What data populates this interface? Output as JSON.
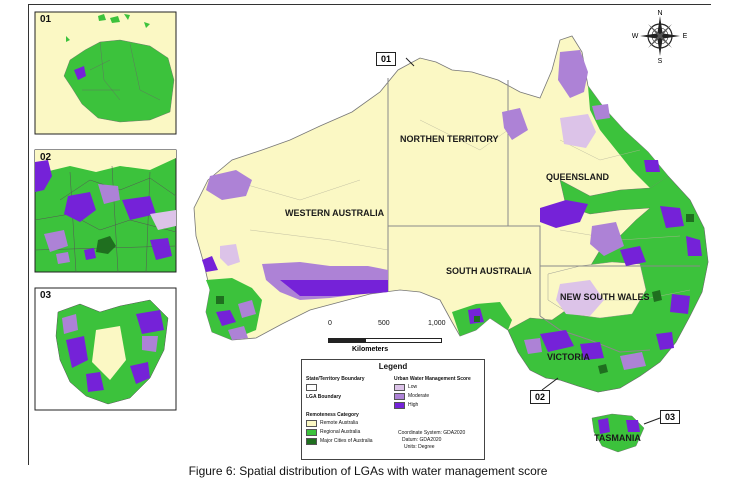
{
  "caption": "Figure 6: Spatial distribution of LGAs with water management score",
  "insets": [
    {
      "label": "01"
    },
    {
      "label": "02"
    },
    {
      "label": "03"
    }
  ],
  "callouts": [
    {
      "label": "01"
    },
    {
      "label": "02"
    },
    {
      "label": "03"
    }
  ],
  "states": {
    "wa": "WESTERN AUSTRALIA",
    "nt": "NORTHEN TERRITORY",
    "qld": "QUEENSLAND",
    "sa": "SOUTH AUSTRALIA",
    "nsw": "NEW SOUTH WALES",
    "vic": "VICTORIA",
    "tas": "TASMANIA"
  },
  "compass": {
    "n": "N",
    "s": "S",
    "e": "E",
    "w": "W"
  },
  "scale": {
    "ticks": [
      "0",
      "500",
      "1,000"
    ],
    "unit": "Kilometers"
  },
  "legend": {
    "title": "Legend",
    "boundary_heading": "State/Territory Boundary",
    "lga_heading": "LGA Boundary",
    "remoteness_heading": "Remoteness Category",
    "remoteness": [
      {
        "label": "Remote Australia",
        "color": "#fbf8c4"
      },
      {
        "label": "Regional Australia",
        "color": "#3cc23c"
      },
      {
        "label": "Major Cities of Australia",
        "color": "#1f6f1f"
      }
    ],
    "score_heading": "Urban Water Management Score",
    "scores": [
      {
        "label": "Low",
        "color": "#dcc3e8"
      },
      {
        "label": "Moderate",
        "color": "#ad82d6"
      },
      {
        "label": "High",
        "color": "#7522d8"
      }
    ],
    "crs": "Coordinate System: GDA2020",
    "datum": "Datum: GDA2020",
    "units": "Units: Degree"
  },
  "colors": {
    "remote": "#fbf8c4",
    "regional": "#3cc23c",
    "major": "#1f6f1f",
    "low": "#dcc3e8",
    "moderate": "#ad82d6",
    "high": "#7522d8",
    "boundary": "#8a8a8a"
  }
}
